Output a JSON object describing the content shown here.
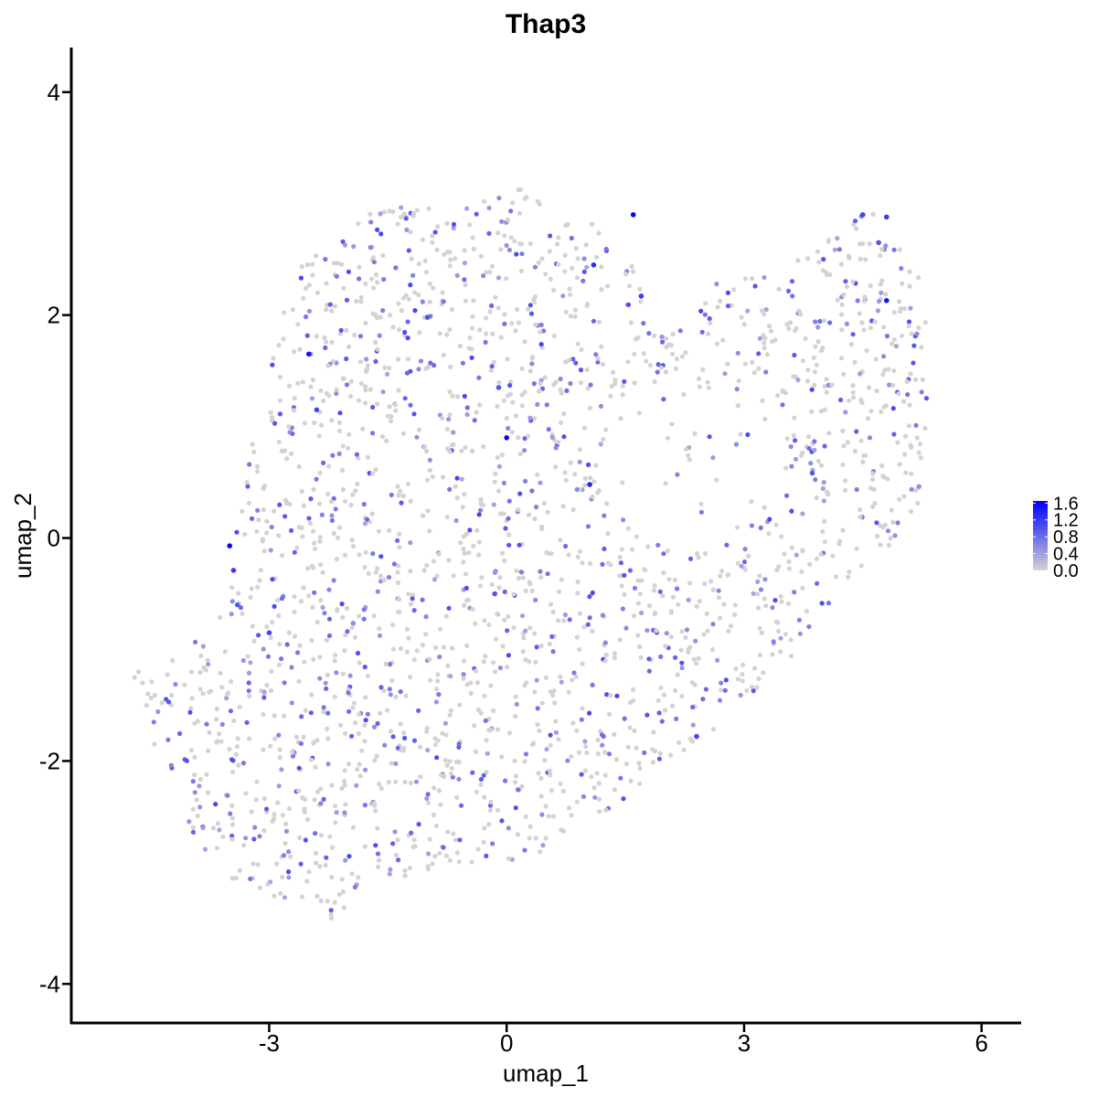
{
  "chart_data": {
    "type": "scatter",
    "title": "Thap3",
    "xlabel": "umap_1",
    "ylabel": "umap_2",
    "xlim": [
      -5.5,
      6.5
    ],
    "ylim": [
      -4.35,
      4.4
    ],
    "x_ticks": [
      -3,
      0,
      3,
      6
    ],
    "x_tick_labels": [
      "-3",
      "0",
      "3",
      "6"
    ],
    "y_ticks": [
      -4,
      -2,
      0,
      2,
      4
    ],
    "y_tick_labels": [
      "-4",
      "-2",
      "0",
      "2",
      "4"
    ],
    "grid": false,
    "legend_position": "right",
    "colorbar": {
      "min": 0.0,
      "max": 1.65,
      "ticks": [
        0.0,
        0.4,
        0.8,
        1.2,
        1.6
      ],
      "tick_labels": [
        "0.0",
        "0.4",
        "0.8",
        "1.2",
        "1.6"
      ],
      "low_color": "#d3d3d3",
      "high_color": "#0000ff"
    },
    "highlight_points": [
      {
        "x": 1.6,
        "y": 2.9,
        "value": 1.65
      },
      {
        "x": 1.1,
        "y": 2.45,
        "value": 1.3
      },
      {
        "x": 1.7,
        "y": 2.17,
        "value": 1.2
      },
      {
        "x": 4.8,
        "y": 2.13,
        "value": 1.5
      },
      {
        "x": 4.5,
        "y": 2.9,
        "value": 1.1
      },
      {
        "x": 4.7,
        "y": 2.65,
        "value": 1.0
      },
      {
        "x": 4.8,
        "y": 2.88,
        "value": 1.2
      },
      {
        "x": -2.5,
        "y": 1.65,
        "value": 1.5
      },
      {
        "x": 0.0,
        "y": 0.9,
        "value": 1.6
      },
      {
        "x": 1.05,
        "y": 0.48,
        "value": 1.4
      },
      {
        "x": -3.5,
        "y": -0.07,
        "value": 1.6
      },
      {
        "x": -3.45,
        "y": -0.29,
        "value": 1.2
      },
      {
        "x": -1.0,
        "y": 1.98,
        "value": 1.0
      },
      {
        "x": 2.4,
        "y": -1.78,
        "value": 1.1
      },
      {
        "x": -0.15,
        "y": -0.5,
        "value": 1.0
      },
      {
        "x": -3.0,
        "y": -0.85,
        "value": 1.1
      },
      {
        "x": -2.4,
        "y": 1.15,
        "value": 1.1
      },
      {
        "x": -0.1,
        "y": 1.35,
        "value": 1.0
      }
    ]
  }
}
